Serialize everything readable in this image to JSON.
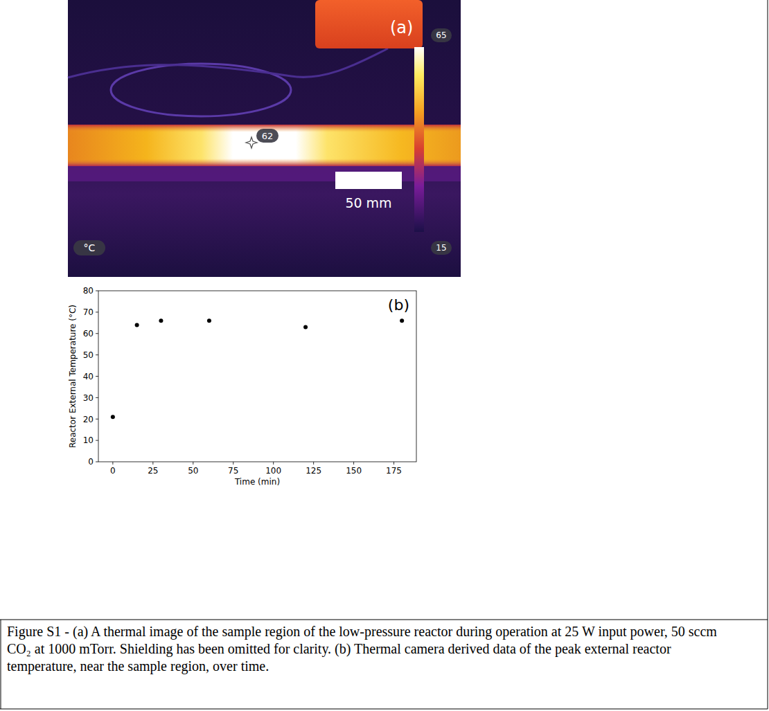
{
  "thermal_image": {
    "panel_label": "(a)",
    "colorbar_max": 65,
    "colorbar_min": 15,
    "spot_temperature": 62,
    "unit": "°C",
    "scale_bar": "50 mm"
  },
  "chart_data": {
    "type": "scatter",
    "annotations": [
      "(b)"
    ],
    "x_label": "Time (min)",
    "y_label": "Reactor External Temperature (°C)",
    "x": [
      0,
      15,
      30,
      60,
      120,
      180
    ],
    "values": [
      21,
      64,
      66,
      66,
      63,
      66
    ],
    "color": "#000000",
    "marker": "circle",
    "xlim": [
      -9,
      189
    ],
    "xticks": [
      0,
      25,
      50,
      75,
      100,
      125,
      150,
      175
    ],
    "ylim": [
      0,
      80
    ],
    "yticks": [
      0,
      10,
      20,
      30,
      40,
      50,
      60,
      70,
      80
    ],
    "grid": false
  },
  "caption": "Figure S1 - (a) A thermal image of the sample region of the low-pressure reactor during operation at 25 W input power, 50 sccm CO₂ at 1000 mTorr. Shielding has been omitted for clarity. (b) Thermal camera derived data of the peak external reactor temperature, near the sample region, over time."
}
